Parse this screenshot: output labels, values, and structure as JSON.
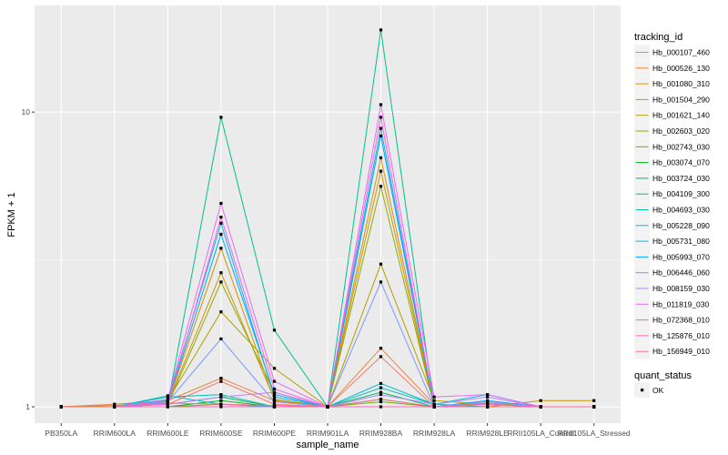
{
  "chart_data": {
    "type": "line",
    "title": "",
    "xlabel": "sample_name",
    "ylabel": "FPKM + 1",
    "y_scale": "log10",
    "ylim": [
      0.88,
      23
    ],
    "y_ticks": [
      1,
      10
    ],
    "y_tick_labels": [
      "1",
      "10"
    ],
    "categories": [
      "PB350LA",
      "RRIM600LA",
      "RRIM600LE",
      "RRIM600SE",
      "RRIM600PE",
      "RRIM901LA",
      "RRIM928BA",
      "RRIM928LA",
      "RRIM928LE",
      "RRII105LA_Control",
      "RRII105LA_Stressed"
    ],
    "legend_title": "tracking_id",
    "legend2_title": "quant_status",
    "legend2_label": "OK",
    "point_color": "#000000",
    "panel_color": "#ebebeb",
    "grid_color": "#ffffff",
    "series": [
      {
        "name": "Hb_000107_460",
        "color": "#F8766D",
        "values": [
          1.0,
          1.0,
          1.02,
          1.22,
          1.02,
          1.0,
          1.48,
          1.0,
          1.02,
          1.0,
          1.0
        ]
      },
      {
        "name": "Hb_000526_130",
        "color": "#EC8239",
        "values": [
          1.0,
          1.02,
          1.05,
          1.25,
          1.05,
          1.0,
          1.58,
          1.02,
          1.0,
          1.0,
          1.0
        ]
      },
      {
        "name": "Hb_001080_310",
        "color": "#DB8E00",
        "values": [
          1.0,
          1.0,
          1.03,
          3.45,
          1.05,
          1.0,
          7.0,
          1.0,
          1.03,
          1.0,
          1.0
        ]
      },
      {
        "name": "Hb_001504_290",
        "color": "#C79800",
        "values": [
          1.0,
          1.01,
          1.03,
          2.85,
          1.06,
          1.0,
          6.3,
          1.0,
          1.0,
          1.05,
          1.05
        ]
      },
      {
        "name": "Hb_001621_140",
        "color": "#AEA200",
        "values": [
          1.0,
          1.0,
          1.05,
          2.1,
          1.35,
          1.0,
          3.05,
          1.05,
          1.02,
          1.0,
          1.0
        ]
      },
      {
        "name": "Hb_002603_020",
        "color": "#8FAA00",
        "values": [
          1.0,
          1.0,
          1.02,
          2.65,
          1.12,
          1.0,
          5.6,
          1.0,
          1.0,
          1.0,
          1.0
        ]
      },
      {
        "name": "Hb_002743_030",
        "color": "#64B200",
        "values": [
          1.0,
          1.0,
          1.0,
          1.02,
          1.0,
          1.0,
          1.04,
          1.0,
          1.0,
          1.0,
          1.0
        ]
      },
      {
        "name": "Hb_003074_070",
        "color": "#00B81B",
        "values": [
          1.0,
          1.0,
          1.0,
          1.05,
          1.0,
          1.0,
          1.06,
          1.0,
          1.02,
          1.0,
          1.0
        ]
      },
      {
        "name": "Hb_003724_030",
        "color": "#00BD5C",
        "values": [
          1.0,
          1.0,
          1.02,
          1.08,
          1.0,
          1.0,
          1.12,
          1.0,
          1.0,
          1.0,
          1.0
        ]
      },
      {
        "name": "Hb_004109_300",
        "color": "#00C08E",
        "values": [
          1.0,
          1.0,
          1.02,
          9.6,
          1.82,
          1.0,
          19.0,
          1.0,
          1.0,
          1.0,
          1.0
        ]
      },
      {
        "name": "Hb_004693_030",
        "color": "#00C1B2",
        "values": [
          1.0,
          1.0,
          1.08,
          1.1,
          1.0,
          1.0,
          1.16,
          1.02,
          1.0,
          1.0,
          1.0
        ]
      },
      {
        "name": "Hb_005228_090",
        "color": "#00BCD6",
        "values": [
          1.0,
          1.0,
          1.09,
          1.02,
          1.0,
          1.0,
          1.2,
          1.02,
          1.1,
          1.0,
          1.0
        ]
      },
      {
        "name": "Hb_005731_080",
        "color": "#00B5EE",
        "values": [
          1.0,
          1.0,
          1.05,
          4.2,
          1.08,
          1.0,
          8.8,
          1.0,
          1.0,
          1.0,
          1.0
        ]
      },
      {
        "name": "Hb_005993_070",
        "color": "#00A6FF",
        "values": [
          1.0,
          1.0,
          1.03,
          3.85,
          1.1,
          1.0,
          8.3,
          1.0,
          1.05,
          1.0,
          1.0
        ]
      },
      {
        "name": "Hb_006446_060",
        "color": "#7F96FF",
        "values": [
          1.0,
          1.0,
          1.04,
          1.7,
          1.04,
          1.0,
          2.65,
          1.0,
          1.04,
          1.0,
          1.0
        ]
      },
      {
        "name": "Hb_008159_030",
        "color": "#BC81FF",
        "values": [
          1.0,
          1.0,
          1.02,
          1.08,
          1.12,
          1.0,
          1.1,
          1.02,
          1.08,
          1.0,
          1.0
        ]
      },
      {
        "name": "Hb_011819_030",
        "color": "#E26EF7",
        "values": [
          1.0,
          1.0,
          1.06,
          4.9,
          1.22,
          1.0,
          10.6,
          1.08,
          1.1,
          1.0,
          1.0
        ]
      },
      {
        "name": "Hb_072368_010",
        "color": "#F863DF",
        "values": [
          1.0,
          1.0,
          1.02,
          4.4,
          1.15,
          1.0,
          9.6,
          1.0,
          1.02,
          1.0,
          1.0
        ]
      },
      {
        "name": "Hb_125876_010",
        "color": "#FF62BF",
        "values": [
          1.0,
          1.0,
          1.0,
          1.0,
          1.0,
          1.0,
          1.0,
          1.0,
          1.0,
          1.0,
          1.0
        ]
      },
      {
        "name": "Hb_156949_010",
        "color": "#FF6A98",
        "values": [
          1.0,
          1.0,
          1.03,
          1.02,
          1.01,
          1.0,
          1.06,
          1.0,
          1.0,
          1.0,
          1.0
        ]
      }
    ]
  }
}
